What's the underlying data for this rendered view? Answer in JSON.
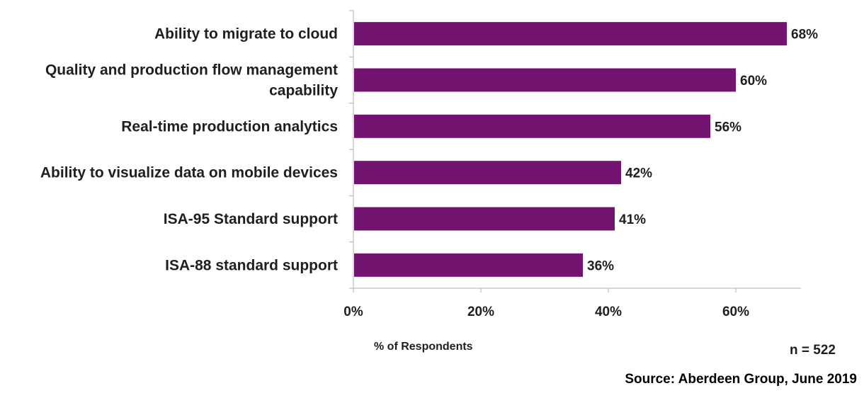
{
  "chart_data": {
    "type": "bar",
    "orientation": "horizontal",
    "categories": [
      "Ability to migrate to cloud",
      "Quality and production flow management capability",
      "Real-time production analytics",
      "Ability to visualize data on mobile devices",
      "ISA-95 Standard support",
      "ISA-88 standard support"
    ],
    "category_lines": [
      [
        "Ability to migrate to cloud"
      ],
      [
        "Quality and production flow management",
        "capability"
      ],
      [
        "Real-time production analytics"
      ],
      [
        "Ability to visualize data on mobile devices"
      ],
      [
        "ISA-95 Standard support"
      ],
      [
        "ISA-88 standard support"
      ]
    ],
    "values": [
      68,
      60,
      56,
      42,
      41,
      36
    ],
    "value_labels": [
      "68%",
      "60%",
      "56%",
      "42%",
      "41%",
      "36%"
    ],
    "xlim": [
      0,
      70
    ],
    "xticks": [
      0,
      20,
      40,
      60
    ],
    "xtick_labels": [
      "0%",
      "20%",
      "40%",
      "60%"
    ],
    "xlabel": "% of Respondents",
    "bar_color": "#71136f",
    "axis_color": "#b0b0b0",
    "grid": false,
    "legend": false
  },
  "notes": {
    "n": "n = 522",
    "source": "Source: Aberdeen Group, June 2019"
  }
}
